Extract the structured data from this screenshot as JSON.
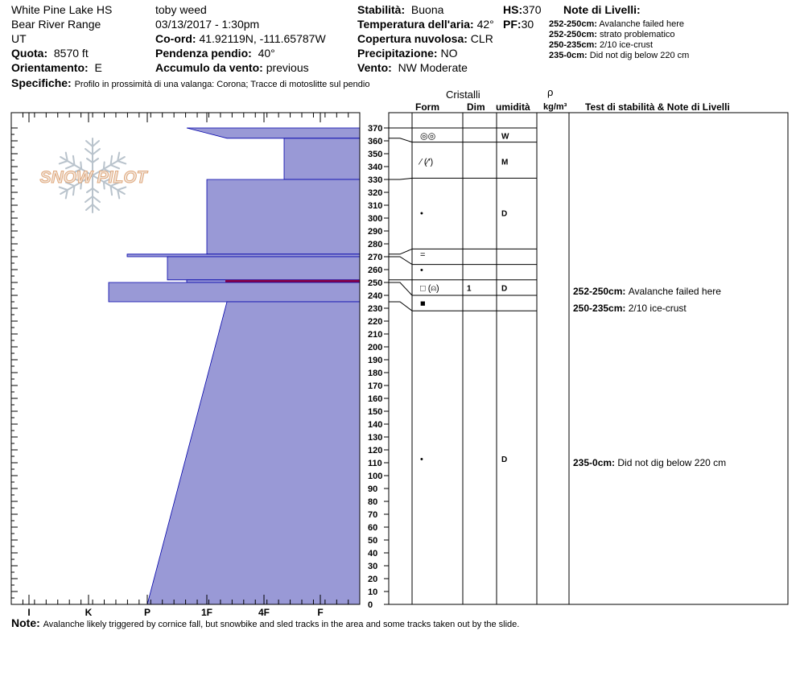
{
  "header": {
    "location": "White Pine Lake HS",
    "range": "Bear River Range",
    "state": "UT",
    "quota_label": "Quota:",
    "quota_value": "8570 ft",
    "orient_label": "Orientamento:",
    "orient_value": "E",
    "observer": "toby weed",
    "datetime": "03/13/2017 - 1:30pm",
    "coord_label": "Co-ord:",
    "coord_value": "41.92119N, -111.65787W",
    "slope_label": "Pendenza pendio:",
    "slope_value": "40°",
    "wind_load_label": "Accumulo da vento:",
    "wind_load_value": "previous",
    "stability_label": "Stabilità:",
    "stability_value": "Buona",
    "airtemp_label": "Temperatura dell'aria:",
    "airtemp_value": "42°",
    "cloud_label": "Copertura nuvolosa:",
    "cloud_value": "CLR",
    "precip_label": "Precipitazione:",
    "precip_value": "NO",
    "wind_label": "Vento:",
    "wind_value": "NW Moderate",
    "hs_label": "HS:",
    "hs_value": "370",
    "pf_label": "PF:",
    "pf_value": "30",
    "specifics_label": "Specifiche:",
    "specifics_value": "Profilo in prossimità di una valanga: Corona; Tracce di motoslitte sul pendio",
    "layer_notes_title": "Note di Livelli:",
    "layer_notes": [
      {
        "range": "252-250cm:",
        "text": "Avalanche failed here"
      },
      {
        "range": "252-250cm:",
        "text": "strato problematico"
      },
      {
        "range": "250-235cm:",
        "text": "2/10 ice-crust"
      },
      {
        "range": "235-0cm:",
        "text": "Did not dig below 220 cm"
      }
    ]
  },
  "logo_text": "SNOW PILOT",
  "columns": {
    "crystals": "Cristalli",
    "form": "Form",
    "dim": "Dim",
    "humidity": "umidità",
    "rho": "ρ",
    "density": "kg/m³",
    "notes": "Test di stabilità & Note di Livelli"
  },
  "footer": {
    "label": "Note:",
    "text": "Avalanche likely triggered by cornice fall, but snowbike and sled tracks in the area and some tracks taken out by the slide."
  },
  "colors": {
    "profile_fill": "#9999d6",
    "profile_stroke": "#0000aa",
    "problem_layer": "#880044"
  },
  "chart_data": {
    "type": "snow-profile",
    "y_unit": "cm",
    "ylim": [
      0,
      375
    ],
    "y_ticks": [
      0,
      10,
      20,
      30,
      40,
      50,
      60,
      70,
      80,
      90,
      100,
      110,
      120,
      130,
      140,
      150,
      160,
      170,
      180,
      190,
      200,
      210,
      220,
      230,
      240,
      250,
      260,
      270,
      280,
      290,
      300,
      310,
      320,
      330,
      340,
      350,
      360,
      370
    ],
    "hardness_scale": [
      "I",
      "K",
      "P",
      "1F",
      "4F",
      "F"
    ],
    "hardness_profile": [
      {
        "top": 370,
        "bottom": 362,
        "hardness_top": "1F+",
        "hardness_bottom": "1F-"
      },
      {
        "top": 362,
        "bottom": 330,
        "hardness": "4F-"
      },
      {
        "top": 330,
        "bottom": 272,
        "hardness": "1F"
      },
      {
        "top": 272,
        "bottom": 270,
        "hardness": "P+"
      },
      {
        "top": 270,
        "bottom": 252,
        "hardness": "P-"
      },
      {
        "top": 252,
        "bottom": 250,
        "hardness": "1F+",
        "problem_layer": true
      },
      {
        "top": 250,
        "bottom": 235,
        "hardness": "K-"
      },
      {
        "top": 235,
        "bottom": 0,
        "hardness_top": "1F-",
        "hardness_bottom": "P"
      }
    ],
    "layers": [
      {
        "y": 364,
        "form": "◎◎",
        "dim": "",
        "humidity": "W"
      },
      {
        "y": 344,
        "form": "⁄ (⁄′)",
        "dim": "",
        "humidity": "M"
      },
      {
        "y": 304,
        "form": "•",
        "dim": "",
        "humidity": "D"
      },
      {
        "y": 272,
        "form": "=",
        "dim": "",
        "humidity": ""
      },
      {
        "y": 260,
        "form": "•",
        "dim": "",
        "humidity": ""
      },
      {
        "y": 246,
        "form": "□ (⍝)",
        "dim": "1",
        "humidity": "D"
      },
      {
        "y": 234,
        "form": "■",
        "dim": "",
        "humidity": ""
      },
      {
        "y": 113,
        "form": "•",
        "dim": "",
        "humidity": "D"
      }
    ],
    "layer_boundaries": [
      370,
      359,
      331,
      276,
      264,
      252,
      240,
      228
    ],
    "boundary_connectors": [
      {
        "depth": 370,
        "row": 370
      },
      {
        "depth": 362,
        "row": 359
      },
      {
        "depth": 330,
        "row": 331
      },
      {
        "depth": 272,
        "row": 276
      },
      {
        "depth": 270,
        "row": 264
      },
      {
        "depth": 252,
        "row": 252
      },
      {
        "depth": 250,
        "row": 240
      },
      {
        "depth": 235,
        "row": 228
      }
    ],
    "notes": [
      {
        "y": 243,
        "range": "252-250cm:",
        "text": "Avalanche failed here"
      },
      {
        "y": 230,
        "range": "250-235cm:",
        "text": "2/10 ice-crust"
      },
      {
        "y": 110,
        "range": "235-0cm:",
        "text": "Did not dig below 220 cm"
      }
    ]
  }
}
